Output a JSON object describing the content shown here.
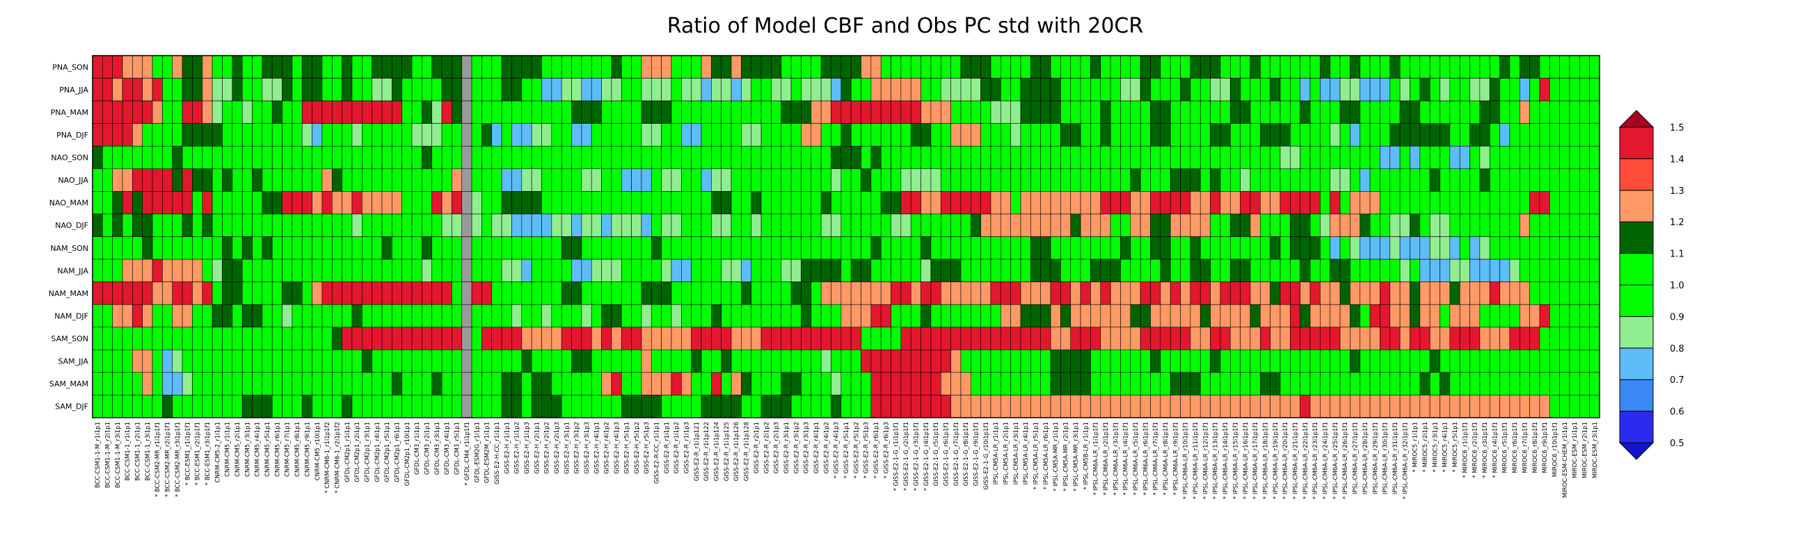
{
  "chart_data": {
    "type": "heatmap",
    "title": "Ratio of Model CBF and Obs PC std with 20CR",
    "rows": [
      "PNA_SON",
      "PNA_JJA",
      "PNA_MAM",
      "PNA_DJF",
      "NAO_SON",
      "NAO_JJA",
      "NAO_MAM",
      "NAO_DJF",
      "NAM_SON",
      "NAM_JJA",
      "NAM_MAM",
      "NAM_DJF",
      "SAM_SON",
      "SAM_JJA",
      "SAM_MAM",
      "SAM_DJF"
    ],
    "columns": [
      "BCC-CSM1-1-M_r1i1p1",
      "BCC-CSM1-1-M_r2i1p1",
      "BCC-CSM1-1-M_r3i1p1",
      "BCC-CSM1-1_r1i1p1",
      "BCC-CSM1-1_r2i1p1",
      "BCC-CSM1-1_r3i1p1",
      "BCC-CSM2-MR_r1i1p1f1",
      "BCC-CSM2-MR_r2i1p1f1",
      "BCC-CSM2-MR_r3i1p1f1",
      "BCC-ESM1_r1i1p1f1",
      "BCC-ESM1_r2i1p1f1",
      "BCC-ESM1_r3i1p1f1",
      "CNRM-CM5-2_r1i1p1",
      "CNRM-CM5_r1i1p1",
      "CNRM-CM5_r2i1p1",
      "CNRM-CM5_r3i1p1",
      "CNRM-CM5_r4i1p1",
      "CNRM-CM5_r5i1p1",
      "CNRM-CM5_r6i1p1",
      "CNRM-CM5_r7i1p1",
      "CNRM-CM5_r8i1p1",
      "CNRM-CM5_r9i1p1",
      "CNRM-CM5_r10i1p1",
      "CNRM-CM6-1_r1i1p1f2",
      "CNRM-CM6-1_r2i1p1f2",
      "GFDL-CM2p1_r1i1p1",
      "GFDL-CM2p1_r2i1p1",
      "GFDL-CM2p1_r3i1p1",
      "GFDL-CM2p1_r4i1p1",
      "GFDL-CM2p1_r5i1p1",
      "GFDL-CM2p1_r6i1p1",
      "GFDL-CM2p1_r10i1p1",
      "GFDL-CM3_r1i1p1",
      "GFDL-CM3_r2i1p1",
      "GFDL-CM3_r3i1p1",
      "GFDL-CM3_r4i1p1",
      "GFDL-CM3_r5i1p1",
      "GFDL-CM4_r1i1p1f1",
      "GFDL-ESM2G_r1i1p1",
      "GFDL-ESM2M_r1i1p1",
      "GISS-E2-H-CC_r1i1p1",
      "GISS-E2-H_r1i1p1",
      "GISS-E2-H_r1i1p2",
      "GISS-E2-H_r1i1p3",
      "GISS-E2-H_r2i1p1",
      "GISS-E2-H_r2i1p2",
      "GISS-E2-H_r2i1p3",
      "GISS-E2-H_r3i1p1",
      "GISS-E2-H_r3i1p2",
      "GISS-E2-H_r3i1p3",
      "GISS-E2-H_r4i1p1",
      "GISS-E2-H_r4i1p2",
      "GISS-E2-H_r4i1p3",
      "GISS-E2-H_r5i1p1",
      "GISS-E2-H_r5i1p2",
      "GISS-E2-H_r5i1p3",
      "GISS-E2-R-CC_r1i1p1",
      "GISS-E2-R_r1i1p1",
      "GISS-E2-R_r1i1p2",
      "GISS-E2-R_r1i1p3",
      "GISS-E2-R_r1i1p121",
      "GISS-E2-R_r1i1p122",
      "GISS-E2-R_r1i1p124",
      "GISS-E2-R_r1i1p125",
      "GISS-E2-R_r1i1p126",
      "GISS-E2-R_r1i1p128",
      "GISS-E2-R_r2i1p1",
      "GISS-E2-R_r2i1p2",
      "GISS-E2-R_r2i1p3",
      "GISS-E2-R_r3i1p1",
      "GISS-E2-R_r3i1p2",
      "GISS-E2-R_r3i1p3",
      "GISS-E2-R_r4i1p1",
      "GISS-E2-R_r4i1p2",
      "GISS-E2-R_r4i1p3",
      "GISS-E2-R_r5i1p1",
      "GISS-E2-R_r5i1p2",
      "GISS-E2-R_r5i1p3",
      "GISS-E2-R_r6i1p1",
      "GISS-E2-R_r6i1p3",
      "GISS-E2-1-G_r1i1p1f1",
      "GISS-E2-1-G_r2i1p1f1",
      "GISS-E2-1-G_r3i1p1f1",
      "GISS-E2-1-G_r4i1p1f1",
      "GISS-E2-1-G_r5i1p1f1",
      "GISS-E2-1-G_r6i1p1f1",
      "GISS-E2-1-G_r7i1p1f1",
      "GISS-E2-1-G_r8i1p1f1",
      "GISS-E2-1-G_r9i1p1f1",
      "GISS-E2-1-G_r10i1p1f1",
      "IPSL-CM5A-LR_r1i1p1",
      "IPSL-CM5A-LR_r2i1p1",
      "IPSL-CM5A-LR_r3i1p1",
      "IPSL-CM5A-LR_r4i1p1",
      "IPSL-CM5A-LR_r5i1p1",
      "IPSL-CM5A-LR_r6i1p1",
      "IPSL-CM5A-MR_r1i1p1",
      "IPSL-CM5A-MR_r2i1p1",
      "IPSL-CM5A-MR_r3i1p1",
      "IPSL-CM5B-LR_r1i1p1",
      "IPSL-CM6A-LR_r1i1p1f1",
      "IPSL-CM6A-LR_r2i1p1f1",
      "IPSL-CM6A-LR_r3i1p1f1",
      "IPSL-CM6A-LR_r4i1p1f1",
      "IPSL-CM6A-LR_r5i1p1f1",
      "IPSL-CM6A-LR_r6i1p1f1",
      "IPSL-CM6A-LR_r7i1p1f1",
      "IPSL-CM6A-LR_r8i1p1f1",
      "IPSL-CM6A-LR_r9i1p1f1",
      "IPSL-CM6A-LR_r10i1p1f1",
      "IPSL-CM6A-LR_r11i1p1f1",
      "IPSL-CM6A-LR_r12i1p1f1",
      "IPSL-CM6A-LR_r13i1p1f1",
      "IPSL-CM6A-LR_r14i1p1f1",
      "IPSL-CM6A-LR_r15i1p1f1",
      "IPSL-CM6A-LR_r16i1p1f1",
      "IPSL-CM6A-LR_r17i1p1f1",
      "IPSL-CM6A-LR_r18i1p1f1",
      "IPSL-CM6A-LR_r19i1p1f1",
      "IPSL-CM6A-LR_r20i1p1f1",
      "IPSL-CM6A-LR_r21i1p1f1",
      "IPSL-CM6A-LR_r22i1p1f1",
      "IPSL-CM6A-LR_r23i1p1f1",
      "IPSL-CM6A-LR_r24i1p1f1",
      "IPSL-CM6A-LR_r25i1p1f1",
      "IPSL-CM6A-LR_r26i1p1f1",
      "IPSL-CM6A-LR_r27i1p1f1",
      "IPSL-CM6A-LR_r28i1p1f1",
      "IPSL-CM6A-LR_r29i1p1f1",
      "IPSL-CM6A-LR_r30i1p1f1",
      "IPSL-CM6A-LR_r31i1p1f1",
      "IPSL-CM6A-LR_r32i1p1f1",
      "MIROC5_r1i1p1",
      "MIROC5_r2i1p1",
      "MIROC5_r3i1p1",
      "MIROC5_r4i1p1",
      "MIROC5_r5i1p1",
      "MIROC6_r1i1p1f1",
      "MIROC6_r2i1p1f1",
      "MIROC6_r3i1p1f1",
      "MIROC6_r4i1p1f1",
      "MIROC6_r5i1p1f1",
      "MIROC6_r6i1p1f1",
      "MIROC6_r7i1p1f1",
      "MIROC6_r8i1p1f1",
      "MIROC6_r9i1p1f1",
      "MIROC6_r10i1p1f1",
      "MIROC-ESM-CHEM_r1i1p1",
      "MIROC-ESM_r1i1p1",
      "MIROC-ESM_r2i1p1",
      "MIROC-ESM_r3i1p1"
    ],
    "starred_columns": [
      6,
      7,
      8,
      9,
      10,
      11,
      23,
      24,
      37,
      74,
      75,
      76,
      77,
      78,
      79,
      80,
      81,
      82,
      83,
      94,
      95,
      96,
      97,
      98,
      99,
      100,
      101,
      102,
      103,
      104,
      105,
      106,
      107,
      108,
      109,
      110,
      111,
      112,
      113,
      114,
      115,
      116,
      117,
      118,
      119,
      120,
      121,
      122,
      123,
      124,
      125,
      131,
      132,
      133,
      134,
      135,
      136,
      137,
      138,
      139,
      140
    ],
    "highlight_columns": [
      37
    ],
    "colorbar": {
      "levels": [
        0.5,
        0.6,
        0.7,
        0.8,
        0.9,
        1.0,
        1.1,
        1.2,
        1.3,
        1.4,
        1.5
      ],
      "labels": [
        "0.5",
        "0.6",
        "0.7",
        "0.8",
        "0.9",
        "1.0",
        "1.1",
        "1.2",
        "1.3",
        "1.4",
        "1.5"
      ],
      "colors": [
        "#2b2bf0",
        "#3a88f5",
        "#5dbdf8",
        "#90ee90",
        "#00ff00",
        "#00ff00",
        "#006400",
        "#ff9966",
        "#ff4b3a",
        "#e3172e"
      ],
      "under_color": "#1414cc",
      "over_color": "#aa0022"
    },
    "values_encoding": "Cell colors follow the colorbar; see matrix built by the page script from the row patterns below.",
    "row_patterns": {
      "PNA_SON": "RRRPPPGGPDDPGGDGGDDDGDDGGDGGDDDDGGDDDDGGGDDDDGGGGGGGDGGPPPGGGPDDPDDDDGGGGDDDDPPGGGGGGGGDDDGGGGDDGGGGDGGGGDDGGGDDDGGGDGGGGGGDGGDGGGDGGGGGGGGGGDGDDG",
      "PNA_JJA": "RRPRRPRGGDDPLLDGGLLDGDDGGDGGLLDGGGGDDDGGGDDGGBBLLBBLLGGLLLGLLBLLBLGGLLGLLLBDGGPPPPPGGLLLLDDGGDDDDGGGGGGLLDGGGDGGLLDGGGDGGBGBBLLBBBGLGDGLGGLLDGGBGR",
      "PNA_MAM": "RRRRRRPGGRRPLGGLGGDGGRRRRRRRRRRGGDLRDGGGGGGGGGGGDDDGGGGDDDGGGGGGGGGGGDDDPPRRRRRRRRRPPPGGGGLLLDDDDGGGGDGGGGDDGGGGGGDDGGGGGDGGGDDGGGGDDGGGGGGDDGGPG",
      "PNA_DJF": "RRRRPGGGGDDDDGGGGGGGGLBGGGLGGGGGLLLGGGGDBGBBLLGGBBGGGGGLLGGBBGGGGLLGGGGPPGGDGGGGGGDDGGPPPGGGLGGGGDDGGDGGGGDDGGGGDDGGGDDDGGGGLGBGGGDDDDDDGGDDGBGG",
      "NAO_SON": "DGGGGGGGDGGGGGGGGGGGGGGGGGGGGGGGGDGGGGGGGGGGGGGGGGGGGGGGGGGGGGGGGGGGGGGGGGDDDGDGGGGGGGGGGGGGGGGGGGGGGGGGGGGGGGGGGGGGGGGLLGGGGGGGGBBGBGGGBBGLGGGG",
      "NAO_JJA": "GGPPRRRRDRDDGDGGDGGGGGGPDGGGGGGGGGGGPDGGGBBLLGGGGLLGGBBBGLLGGBLLGGGGGGGGGGLGGDGGGLLLLGGGGGGGGGGGGGGGGGGGDGGGDDDGDGGLGGGGGGGGLLGBGGGGGGDGGGGDGGGGGG",
      "NAO_MAM": "GGDRDRRRRRGRGGGGGDDRRRPRPPRPPPPGGGRPRDLGGDDDDGGGGGGGGGGGGGGGGGDDGGDGGGGGGDGGGGGDDRRPPRRRRRPPGPPPPPPPPRRRPPRRRRPPRPPRRPPRRRRGRGPPPGGGGGGGGGGGGGGGRR",
      "NAO_DJF": "DGDGDDGGGDGDGGGGGGGGGGGGGGLGGGGGGGGLLGLGLLBBBBLLBLLBLLLBGLLGGGLLGGLGGGGGGLLGGGGGLLGGGGGGDPPPPPPPPPDPPPGGPPDDPPPPGGDDPGGGDDGLPPPDGGLLDGLLGGGGGGGPGG",
      "NAM_SON": "GGGGGDGGGGGGGDGDGDGGGGGGGGGGGDGGGDGGGGGGGGGGGGGDDGGGGGGGDGGGGGGGGGGGGGGGGGGGGGDGGGGDGGGGGGGGGGDDGGGGGGGDGGDDGGDGGGGGGGDGDDDGBGLBBBLBBBLLBGBLGGGGG",
      "NAM_JJA": "GGGPPPRPPPPGLDDGGGGGGGGGGGGGGGGGGLGGGGGGGLLBGGGGBBLLLGGGGLBBGGGLLBGGGLLDDDDGDDGGGGGLDDDGGGGGGGDDDGGGDDDGGGGDGGDDGGDDGGGGGDGGDDGGGGGLGBBBLLBBBBLGGG",
      "NAM_MAM": "RRRRRRPPRRPRGDDGGGGDDGPRRRRRRRRRRRRRGGRRGGGGGGGDDGGGGGGDDDGGGGGGGDGGGGDDGPPPPPPPRRPRRPPPPPRRRPPPRRPRPRPPPRRPRPRRPRRRPPDRRPRPPDPPPRPPDPPPDPPPRPPP",
      "NAM_DJF": "GGPPRPGGPPGGDDGDDGGLGGGGGGDGGGGGGGGGGGGGGGLGGLGGGLGDDGGLGGLGGGDGGGGGGGGDGGGPPPRRGGGDGGGGGGGPPDDDPDPPPPPPDDPPPPPDPPPPDPPPRDPPPPDGRRPPDPPGPPPGGGGPPR",
      "SAM_SON": "GGGGGGGGGGGGGGGGGGGGGGGGDRRRRRRRRRRRRGGRRRRPPPPRRRPRPRRPPPPPRRRRPPPRRRRRRRRRRGGGGRRRRRRRRRRRRRRRPPRRRPPPPRRRRRPPRRPPPRPPRRRRRPPPPRRPRRPPRRRPPPRRR",
      "SAM_JJA": "GGGGPPGBLGGGGGGGGGGGGGGGGGGDGGGGGGGGGDGGGGGDGGGGDDGGGGGPGGGGDGGDGGGGGGGGGLGGGRRRRRRRRRPGGGGGGGGGDDDDGGGGGGDGGGGGDGGGGGGGGGGGGGDGGGGGGGDGGGGGGGGGG",
      "SAM_MAM": "GGGGGPGBBLGGGGGGGGGGGGGGGGGGGGDGGGDGGGGGGDDGDDGGGGGPRGGPPPRPGGRGPDGGGDDGGGLGGGRRRRRRRPPPGGGGGGGGDDDDGGGGGGGGDDDGGGGGGDDGGGGGGGGGGGGGGDGDGGGGGGGGGG",
      "SAM_DJF": "GGGGGGGDGGGGGGGDDDGGGDGGGDGGGGGGGGGGGDGGGDDGDDDGGGGGGDDDDGGGGDDDDGGDDDGGGGDGGGRRRRRRRRPPPPPPPPPPPPPPPPPPPPPPPPPPPPPPPPPPPRPPPPPPPPPPPPPPPPPPPPPPPP"
    },
    "code_values": {
      "V": 1.55,
      "R": 1.45,
      "r": 1.35,
      "P": 1.25,
      "D": 1.15,
      "G": 0.95,
      "L": 0.85,
      "B": 0.75,
      "b": 0.65,
      "N": 0.55
    }
  }
}
